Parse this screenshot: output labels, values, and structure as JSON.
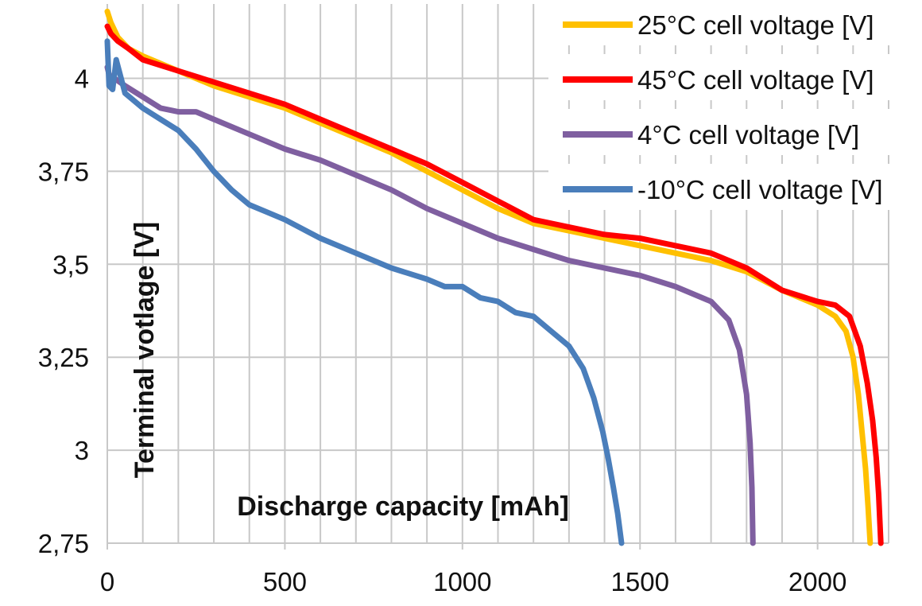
{
  "chart_data": {
    "type": "line",
    "title": "",
    "xlabel": "Discharge capacity [mAh]",
    "ylabel": "Terminal votlage [V]",
    "xlim": [
      0,
      2200
    ],
    "ylim": [
      2.75,
      4.2
    ],
    "grid": true,
    "legend_position": "top-right",
    "x_ticks": [
      0,
      500,
      1000,
      1500,
      2000
    ],
    "x_tick_labels": [
      "0",
      "500",
      "1000",
      "1500",
      "2000"
    ],
    "y_ticks": [
      2.75,
      3,
      3.25,
      3.5,
      3.75,
      4
    ],
    "y_tick_labels": [
      "2,75",
      "3",
      "3,25",
      "3,5",
      "3,75",
      "4"
    ],
    "series": [
      {
        "name": "25°C cell voltage [V]",
        "color": "#FFC000",
        "points": [
          [
            0,
            4.18
          ],
          [
            10,
            4.15
          ],
          [
            30,
            4.11
          ],
          [
            60,
            4.08
          ],
          [
            100,
            4.06
          ],
          [
            200,
            4.02
          ],
          [
            300,
            3.98
          ],
          [
            400,
            3.95
          ],
          [
            500,
            3.92
          ],
          [
            600,
            3.88
          ],
          [
            700,
            3.84
          ],
          [
            800,
            3.8
          ],
          [
            900,
            3.75
          ],
          [
            1000,
            3.7
          ],
          [
            1100,
            3.65
          ],
          [
            1200,
            3.61
          ],
          [
            1300,
            3.59
          ],
          [
            1400,
            3.57
          ],
          [
            1500,
            3.55
          ],
          [
            1600,
            3.53
          ],
          [
            1700,
            3.51
          ],
          [
            1800,
            3.48
          ],
          [
            1900,
            3.43
          ],
          [
            2000,
            3.39
          ],
          [
            2050,
            3.36
          ],
          [
            2080,
            3.32
          ],
          [
            2100,
            3.25
          ],
          [
            2115,
            3.15
          ],
          [
            2125,
            3.05
          ],
          [
            2135,
            2.95
          ],
          [
            2142,
            2.85
          ],
          [
            2148,
            2.75
          ]
        ]
      },
      {
        "name": "45°C cell voltage [V]",
        "color": "#FF0000",
        "points": [
          [
            0,
            4.14
          ],
          [
            10,
            4.12
          ],
          [
            30,
            4.1
          ],
          [
            60,
            4.08
          ],
          [
            100,
            4.05
          ],
          [
            200,
            4.02
          ],
          [
            300,
            3.99
          ],
          [
            400,
            3.96
          ],
          [
            500,
            3.93
          ],
          [
            600,
            3.89
          ],
          [
            700,
            3.85
          ],
          [
            800,
            3.81
          ],
          [
            900,
            3.77
          ],
          [
            1000,
            3.72
          ],
          [
            1100,
            3.67
          ],
          [
            1200,
            3.62
          ],
          [
            1300,
            3.6
          ],
          [
            1400,
            3.58
          ],
          [
            1500,
            3.57
          ],
          [
            1600,
            3.55
          ],
          [
            1700,
            3.53
          ],
          [
            1800,
            3.49
          ],
          [
            1900,
            3.43
          ],
          [
            2000,
            3.4
          ],
          [
            2050,
            3.39
          ],
          [
            2090,
            3.36
          ],
          [
            2120,
            3.28
          ],
          [
            2140,
            3.18
          ],
          [
            2155,
            3.08
          ],
          [
            2165,
            2.98
          ],
          [
            2172,
            2.88
          ],
          [
            2178,
            2.75
          ]
        ]
      },
      {
        "name": "4°C cell voltage [V]",
        "color": "#7F5FA0",
        "points": [
          [
            0,
            4.03
          ],
          [
            10,
            3.99
          ],
          [
            20,
            4.0
          ],
          [
            50,
            3.98
          ],
          [
            100,
            3.95
          ],
          [
            150,
            3.92
          ],
          [
            200,
            3.91
          ],
          [
            250,
            3.91
          ],
          [
            300,
            3.89
          ],
          [
            400,
            3.85
          ],
          [
            500,
            3.81
          ],
          [
            600,
            3.78
          ],
          [
            700,
            3.74
          ],
          [
            800,
            3.7
          ],
          [
            900,
            3.65
          ],
          [
            1000,
            3.61
          ],
          [
            1100,
            3.57
          ],
          [
            1200,
            3.54
          ],
          [
            1300,
            3.51
          ],
          [
            1400,
            3.49
          ],
          [
            1500,
            3.47
          ],
          [
            1600,
            3.44
          ],
          [
            1700,
            3.4
          ],
          [
            1750,
            3.35
          ],
          [
            1780,
            3.27
          ],
          [
            1800,
            3.15
          ],
          [
            1810,
            3.02
          ],
          [
            1815,
            2.9
          ],
          [
            1818,
            2.75
          ]
        ]
      },
      {
        "name": "-10°C cell voltage [V]",
        "color": "#4A7EBB",
        "points": [
          [
            0,
            4.1
          ],
          [
            5,
            3.98
          ],
          [
            15,
            3.97
          ],
          [
            25,
            4.05
          ],
          [
            50,
            3.96
          ],
          [
            100,
            3.92
          ],
          [
            150,
            3.89
          ],
          [
            200,
            3.86
          ],
          [
            250,
            3.81
          ],
          [
            300,
            3.75
          ],
          [
            350,
            3.7
          ],
          [
            400,
            3.66
          ],
          [
            450,
            3.64
          ],
          [
            500,
            3.62
          ],
          [
            600,
            3.57
          ],
          [
            700,
            3.53
          ],
          [
            800,
            3.49
          ],
          [
            900,
            3.46
          ],
          [
            950,
            3.44
          ],
          [
            1000,
            3.44
          ],
          [
            1050,
            3.41
          ],
          [
            1100,
            3.4
          ],
          [
            1150,
            3.37
          ],
          [
            1200,
            3.36
          ],
          [
            1250,
            3.32
          ],
          [
            1300,
            3.28
          ],
          [
            1340,
            3.22
          ],
          [
            1370,
            3.14
          ],
          [
            1395,
            3.05
          ],
          [
            1410,
            2.98
          ],
          [
            1425,
            2.9
          ],
          [
            1437,
            2.83
          ],
          [
            1448,
            2.75
          ]
        ]
      }
    ]
  }
}
